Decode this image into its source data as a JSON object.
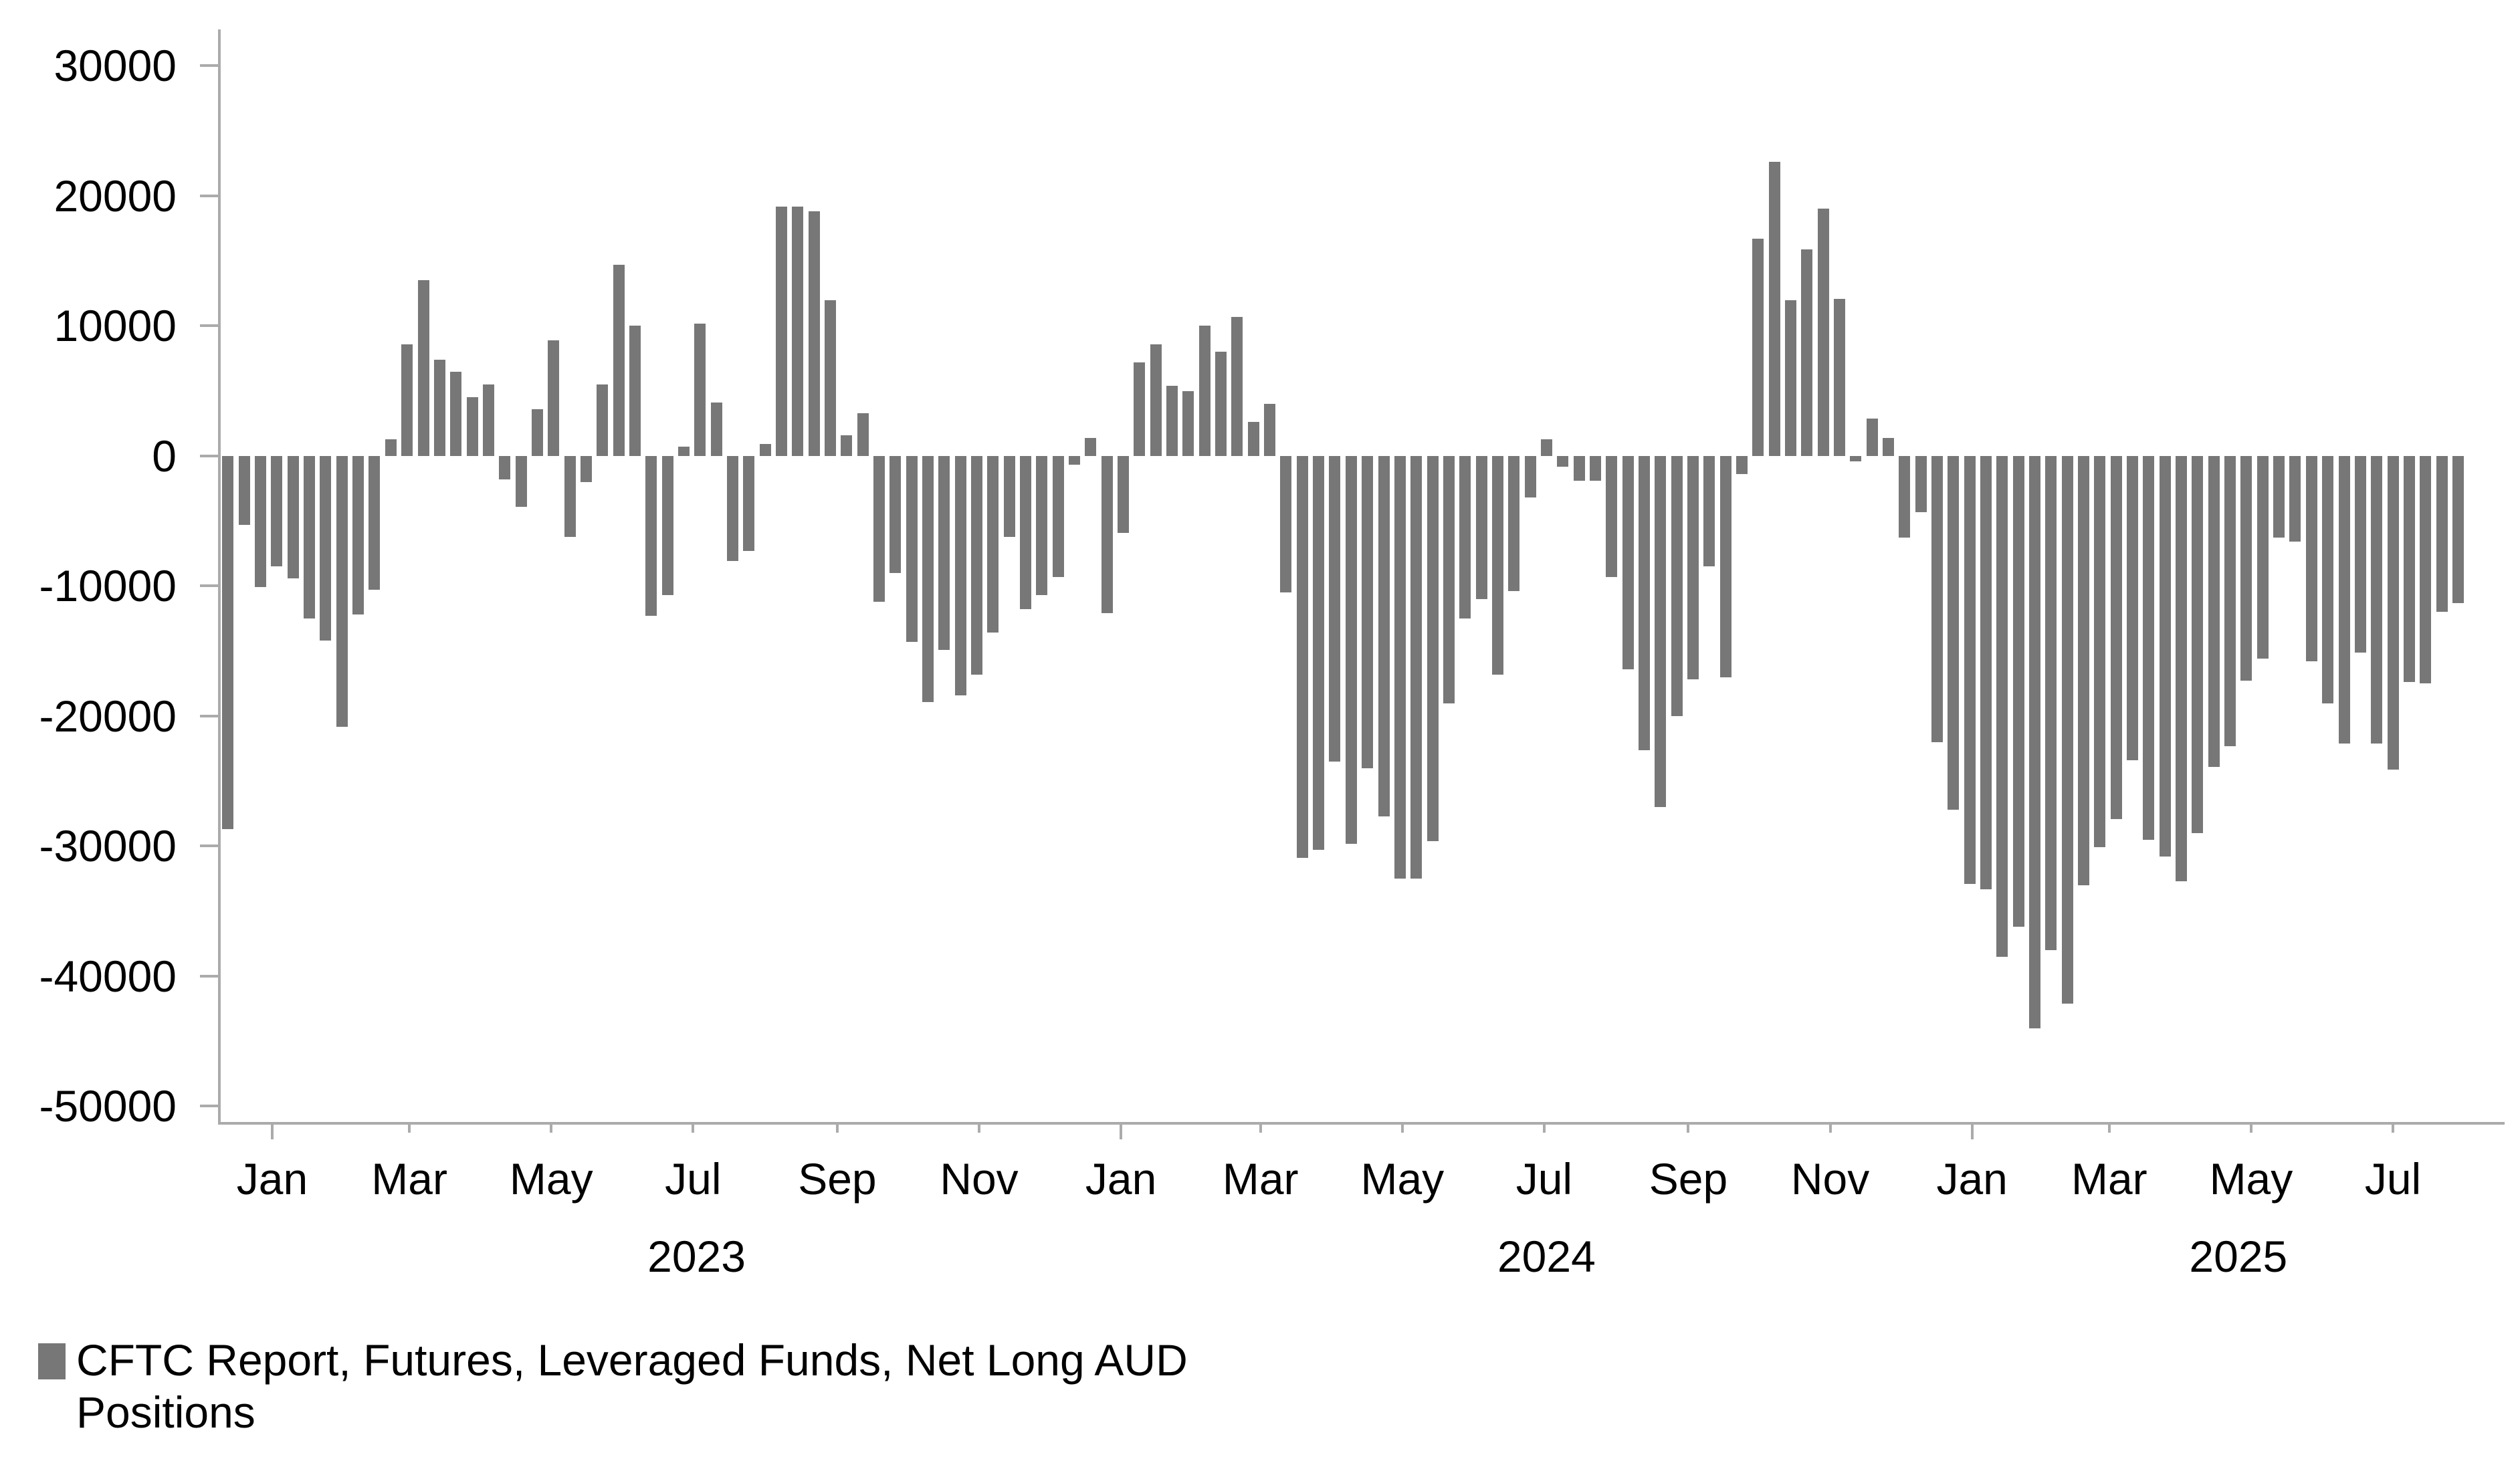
{
  "chart_data": {
    "type": "bar",
    "title": "",
    "legend_label": "CFTC Report, Futures, Leveraged Funds, Net Long AUD Positions",
    "bar_color": "#777777",
    "axis_color": "#ababab",
    "text_color": "#000000",
    "background_color": "#ffffff",
    "grid": false,
    "legend_position": "bottom-left",
    "ylabel": "",
    "xlabel": "",
    "ylim": [
      -50000,
      30000
    ],
    "y_ticks": [
      30000,
      20000,
      10000,
      0,
      -10000,
      -20000,
      -30000,
      -40000,
      -50000
    ],
    "x_month_ticks": [
      {
        "label": "Jan",
        "date": "2023-01-01",
        "year_start": true
      },
      {
        "label": "Mar",
        "date": "2023-03-01",
        "year_start": false
      },
      {
        "label": "May",
        "date": "2023-05-01",
        "year_start": false
      },
      {
        "label": "Jul",
        "date": "2023-07-01",
        "year_start": false
      },
      {
        "label": "Sep",
        "date": "2023-09-01",
        "year_start": false
      },
      {
        "label": "Nov",
        "date": "2023-11-01",
        "year_start": false
      },
      {
        "label": "Jan",
        "date": "2024-01-01",
        "year_start": true
      },
      {
        "label": "Mar",
        "date": "2024-03-01",
        "year_start": false
      },
      {
        "label": "May",
        "date": "2024-05-01",
        "year_start": false
      },
      {
        "label": "Jul",
        "date": "2024-07-01",
        "year_start": false
      },
      {
        "label": "Sep",
        "date": "2024-09-01",
        "year_start": false
      },
      {
        "label": "Nov",
        "date": "2024-11-01",
        "year_start": false
      },
      {
        "label": "Jan",
        "date": "2025-01-01",
        "year_start": true
      },
      {
        "label": "Mar",
        "date": "2025-03-01",
        "year_start": false
      },
      {
        "label": "May",
        "date": "2025-05-01",
        "year_start": false
      },
      {
        "label": "Jul",
        "date": "2025-07-01",
        "year_start": false
      }
    ],
    "x_year_labels": [
      {
        "label": "2023",
        "span_start": "2023-01-01",
        "span_end": "2024-01-01"
      },
      {
        "label": "2024",
        "span_start": "2024-01-01",
        "span_end": "2025-01-01"
      },
      {
        "label": "2025",
        "span_start": "2025-01-01",
        "span_end": "plot-right"
      }
    ],
    "series": [
      {
        "name": "CFTC Report, Futures, Leveraged Funds, Net Long AUD Positions",
        "frequency": "weekly",
        "dates": [
          "2022-12-13",
          "2022-12-20",
          "2022-12-27",
          "2023-01-03",
          "2023-01-10",
          "2023-01-17",
          "2023-01-24",
          "2023-01-31",
          "2023-02-07",
          "2023-02-14",
          "2023-02-21",
          "2023-02-28",
          "2023-03-07",
          "2023-03-14",
          "2023-03-21",
          "2023-03-28",
          "2023-04-04",
          "2023-04-11",
          "2023-04-18",
          "2023-04-25",
          "2023-05-02",
          "2023-05-09",
          "2023-05-16",
          "2023-05-23",
          "2023-05-30",
          "2023-06-06",
          "2023-06-13",
          "2023-06-20",
          "2023-06-27",
          "2023-07-04",
          "2023-07-11",
          "2023-07-18",
          "2023-07-25",
          "2023-08-01",
          "2023-08-08",
          "2023-08-15",
          "2023-08-22",
          "2023-08-29",
          "2023-09-05",
          "2023-09-12",
          "2023-09-19",
          "2023-09-26",
          "2023-10-03",
          "2023-10-10",
          "2023-10-17",
          "2023-10-24",
          "2023-10-31",
          "2023-11-07",
          "2023-11-14",
          "2023-11-21",
          "2023-11-28",
          "2023-12-05",
          "2023-12-12",
          "2023-12-19",
          "2023-12-26",
          "2024-01-02",
          "2024-01-09",
          "2024-01-16",
          "2024-01-23",
          "2024-01-30",
          "2024-02-06",
          "2024-02-13",
          "2024-02-20",
          "2024-02-27",
          "2024-03-05",
          "2024-03-12",
          "2024-03-19",
          "2024-03-26",
          "2024-04-02",
          "2024-04-09",
          "2024-04-16",
          "2024-04-23",
          "2024-04-30",
          "2024-05-07",
          "2024-05-14",
          "2024-05-21",
          "2024-05-28",
          "2024-06-04",
          "2024-06-11",
          "2024-06-18",
          "2024-06-25",
          "2024-07-02",
          "2024-07-09",
          "2024-07-16",
          "2024-07-23",
          "2024-07-30",
          "2024-08-06",
          "2024-08-13",
          "2024-08-20",
          "2024-08-27",
          "2024-09-03",
          "2024-09-10",
          "2024-09-17",
          "2024-09-24",
          "2024-10-01",
          "2024-10-08",
          "2024-10-15",
          "2024-10-22",
          "2024-10-29",
          "2024-11-05",
          "2024-11-12",
          "2024-11-19",
          "2024-11-26",
          "2024-12-03",
          "2024-12-10",
          "2024-12-17",
          "2024-12-24",
          "2024-12-31",
          "2025-01-07",
          "2025-01-14",
          "2025-01-21",
          "2025-01-28",
          "2025-02-04",
          "2025-02-11",
          "2025-02-18",
          "2025-02-25",
          "2025-03-04",
          "2025-03-11",
          "2025-03-18",
          "2025-03-25",
          "2025-04-01",
          "2025-04-08",
          "2025-04-15",
          "2025-04-22",
          "2025-04-29",
          "2025-05-06",
          "2025-05-13",
          "2025-05-20",
          "2025-05-27",
          "2025-06-03",
          "2025-06-10",
          "2025-06-17",
          "2025-06-24",
          "2025-07-01",
          "2025-07-08",
          "2025-07-15",
          "2025-07-22",
          "2025-07-29"
        ],
        "values": [
          -28700,
          -5300,
          -10100,
          -8500,
          -9400,
          -12500,
          -14200,
          -20800,
          -12200,
          -10300,
          1300,
          8600,
          13500,
          7400,
          6500,
          4500,
          5500,
          -1800,
          -3900,
          3600,
          8900,
          -6200,
          -2000,
          5500,
          14700,
          10000,
          -12300,
          -10700,
          700,
          10200,
          4100,
          -8100,
          -7300,
          900,
          19200,
          19200,
          18800,
          12000,
          1600,
          3300,
          -11200,
          -9000,
          -14300,
          -18900,
          -14900,
          -18400,
          -16800,
          -13600,
          -6200,
          -11800,
          -10700,
          -9300,
          -650,
          1400,
          -12100,
          -5900,
          7200,
          8600,
          5400,
          5000,
          10000,
          8000,
          10700,
          2600,
          4000,
          -10500,
          -30900,
          -30300,
          -23500,
          -29800,
          -24000,
          -27700,
          -32500,
          -32500,
          -29600,
          -19000,
          -12500,
          -11000,
          -16800,
          -10400,
          -3200,
          1300,
          -800,
          -1900,
          -1900,
          -9300,
          -16400,
          -22600,
          -27000,
          -20000,
          -17200,
          -8500,
          -17000,
          -1400,
          16700,
          22600,
          12000,
          15900,
          19000,
          12100,
          -400,
          2900,
          1400,
          -6300,
          -4300,
          -22000,
          -27200,
          -32900,
          -33300,
          -38500,
          -36200,
          -44000,
          -38000,
          -42100,
          -33000,
          -30100,
          -27900,
          -23400,
          -29500,
          -30800,
          -32700,
          -29000,
          -23900,
          -22300,
          -17300,
          -15600,
          -6300,
          -6600,
          -15800,
          -19000,
          -22100,
          -15100,
          -22100,
          -24100,
          -17400,
          -17500,
          -12000,
          -11300
        ]
      }
    ]
  }
}
